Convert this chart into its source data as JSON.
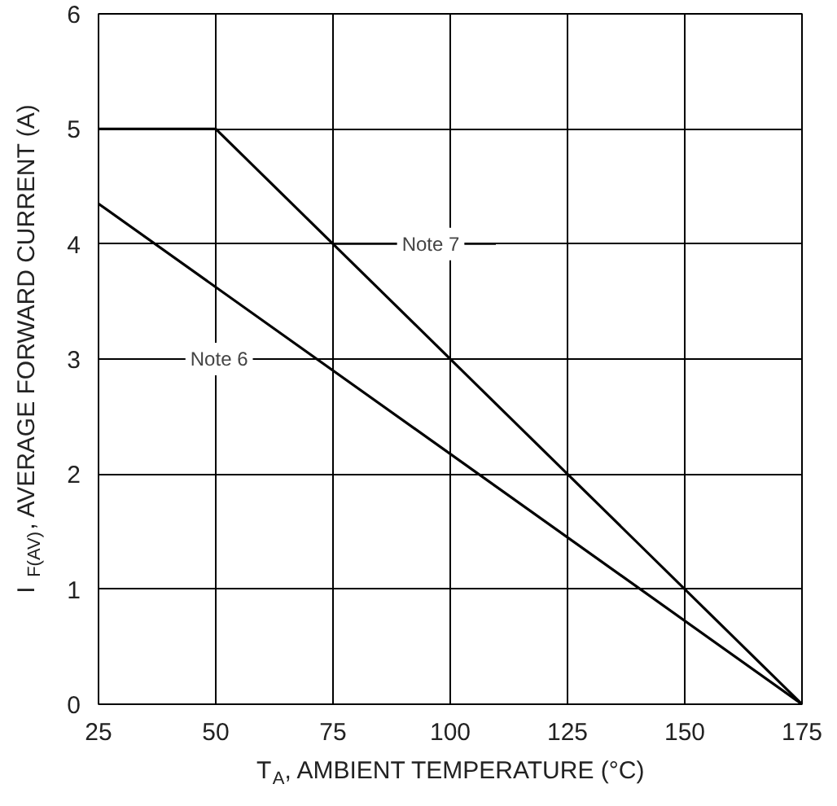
{
  "chart_data": {
    "type": "line",
    "xlabel": "T$_{A}$, AMBIENT TEMPERATURE (°C)",
    "ylabel": "I$_{F(AV)}$, AVERAGE FORWARD CURRENT (A)",
    "xlim": [
      25,
      175
    ],
    "ylim": [
      0,
      6
    ],
    "xticks": [
      25,
      50,
      75,
      100,
      125,
      150,
      175
    ],
    "yticks": [
      0,
      1,
      2,
      3,
      4,
      5,
      6
    ],
    "grid": true,
    "series": [
      {
        "name": "Note 7",
        "color": "#000000",
        "x": [
          25,
          50,
          175
        ],
        "values": [
          5,
          5,
          0
        ]
      },
      {
        "name": "Note 6",
        "color": "#000000",
        "x": [
          25,
          175
        ],
        "values": [
          4.35,
          0
        ]
      }
    ]
  }
}
